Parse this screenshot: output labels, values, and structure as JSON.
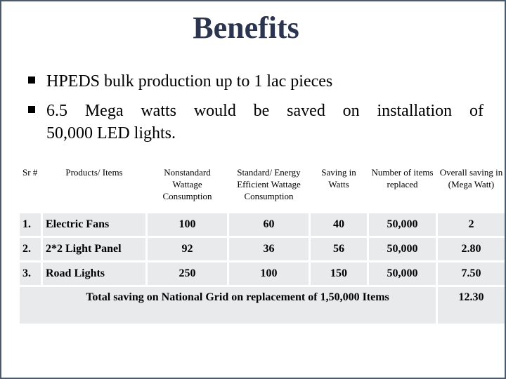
{
  "title": "Benefits",
  "bullets": [
    "HPEDS bulk production up to 1 lac pieces",
    "6.5 Mega watts would be saved on installation of",
    "50,000 LED lights."
  ],
  "table": {
    "headers": [
      "Sr #",
      "Products/ Items",
      "Nonstandard Wattage Consumption",
      "Standard/ Energy Efficient Wattage Consumption",
      "Saving in Watts",
      "Number of items replaced",
      "Overall saving in (Mega Watt)"
    ],
    "rows": [
      [
        "1.",
        "Electric Fans",
        "100",
        "60",
        "40",
        "50,000",
        "2"
      ],
      [
        "2.",
        "2*2 Light Panel",
        "92",
        "36",
        "56",
        "50,000",
        "2.80"
      ],
      [
        "3.",
        "Road Lights",
        "250",
        "100",
        "150",
        "50,000",
        "7.50"
      ]
    ],
    "total_label": "Total saving on National Grid on replacement of 1,50,000 Items",
    "total_value": "12.30"
  }
}
